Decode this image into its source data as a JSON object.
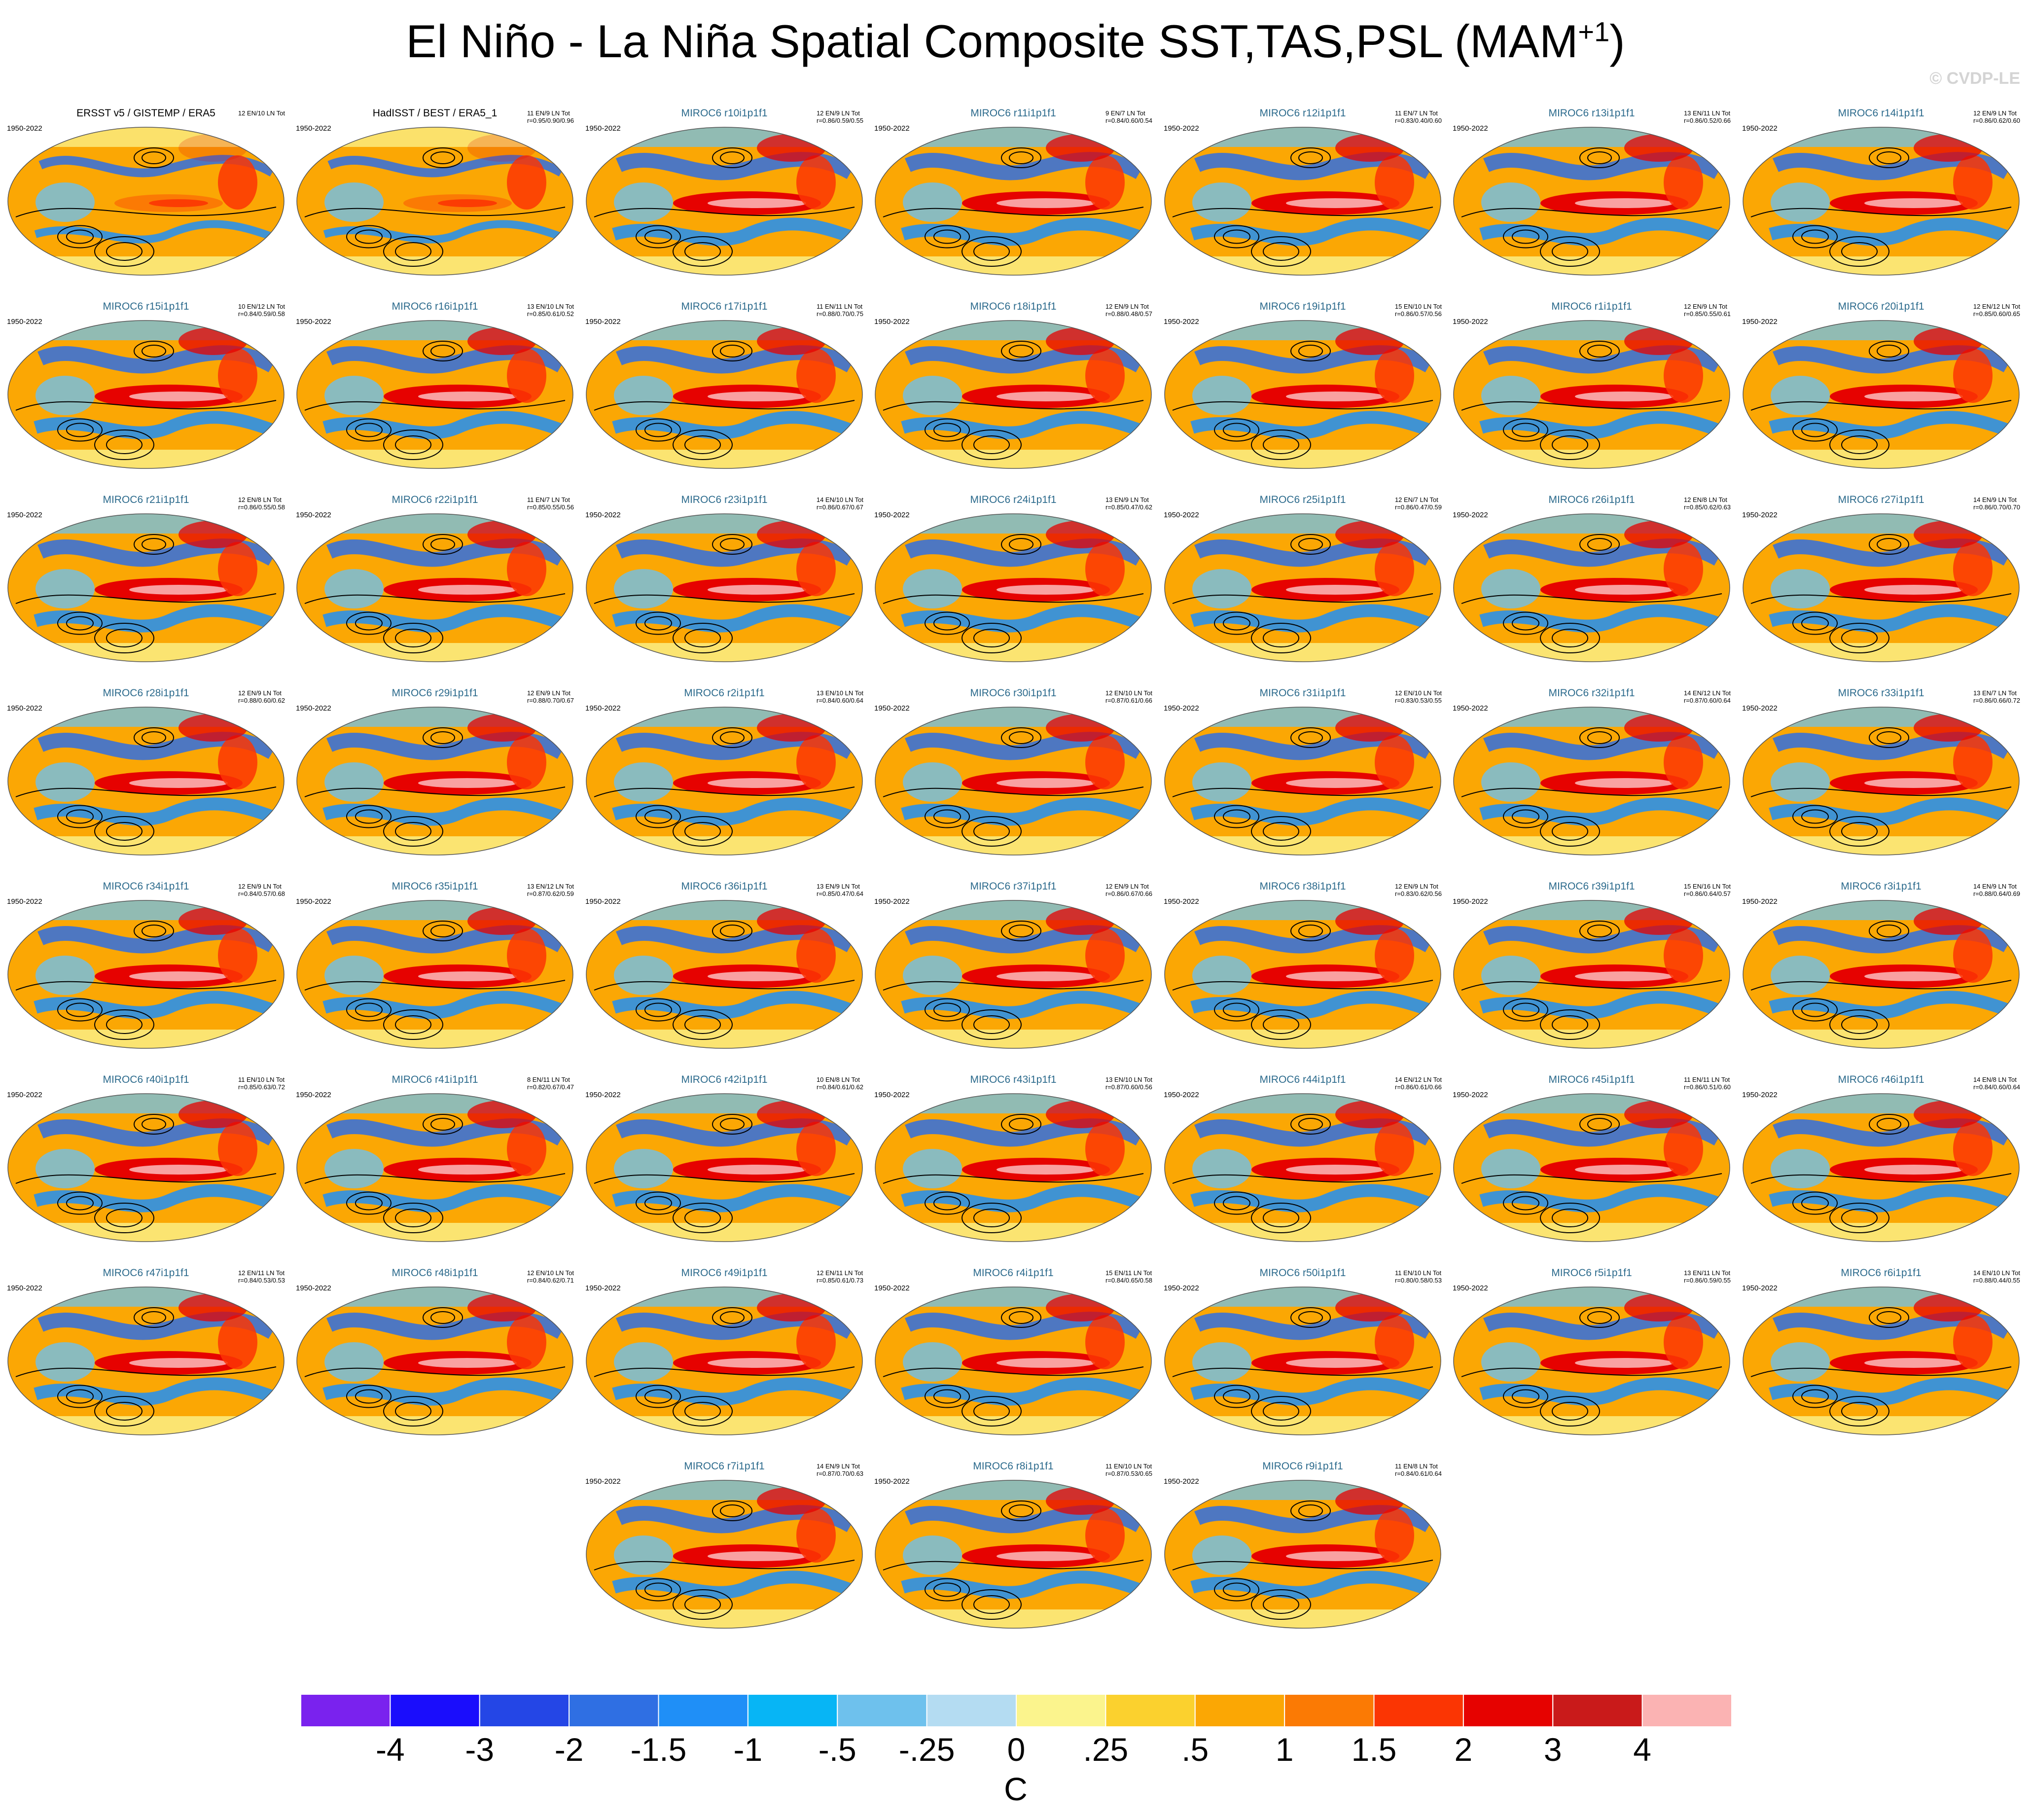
{
  "title": {
    "main": "El Niño - La Niña Spatial Composite SST,TAS,PSL (MAM",
    "superscript": "+1",
    "close": ")"
  },
  "watermark": "© CVDP-LE",
  "panels": [
    {
      "title": "ERSST v5 / GISTEMP / ERA5",
      "period": "1950-2022",
      "counts": "12 EN/10 LN Tot",
      "stats": "",
      "obs": true
    },
    {
      "title": "HadISST / BEST / ERA5_1",
      "period": "1950-2022",
      "counts": "11 EN/9 LN Tot",
      "stats": "r=0.95/0.90/0.96",
      "obs": true
    },
    {
      "title": "MIROC6 r10i1p1f1",
      "period": "1950-2022",
      "counts": "12 EN/9 LN Tot",
      "stats": "r=0.86/0.59/0.55"
    },
    {
      "title": "MIROC6 r11i1p1f1",
      "period": "1950-2022",
      "counts": "9 EN/7 LN Tot",
      "stats": "r=0.84/0.60/0.54"
    },
    {
      "title": "MIROC6 r12i1p1f1",
      "period": "1950-2022",
      "counts": "11 EN/7 LN Tot",
      "stats": "r=0.83/0.40/0.60"
    },
    {
      "title": "MIROC6 r13i1p1f1",
      "period": "1950-2022",
      "counts": "13 EN/11 LN Tot",
      "stats": "r=0.86/0.52/0.66"
    },
    {
      "title": "MIROC6 r14i1p1f1",
      "period": "1950-2022",
      "counts": "12 EN/9 LN Tot",
      "stats": "r=0.86/0.62/0.60"
    },
    {
      "title": "MIROC6 r15i1p1f1",
      "period": "1950-2022",
      "counts": "10 EN/12 LN Tot",
      "stats": "r=0.84/0.59/0.58"
    },
    {
      "title": "MIROC6 r16i1p1f1",
      "period": "1950-2022",
      "counts": "13 EN/10 LN Tot",
      "stats": "r=0.85/0.61/0.52"
    },
    {
      "title": "MIROC6 r17i1p1f1",
      "period": "1950-2022",
      "counts": "11 EN/11 LN Tot",
      "stats": "r=0.88/0.70/0.75"
    },
    {
      "title": "MIROC6 r18i1p1f1",
      "period": "1950-2022",
      "counts": "12 EN/9 LN Tot",
      "stats": "r=0.88/0.48/0.57"
    },
    {
      "title": "MIROC6 r19i1p1f1",
      "period": "1950-2022",
      "counts": "15 EN/10 LN Tot",
      "stats": "r=0.86/0.57/0.56"
    },
    {
      "title": "MIROC6 r1i1p1f1",
      "period": "1950-2022",
      "counts": "12 EN/9 LN Tot",
      "stats": "r=0.85/0.55/0.61"
    },
    {
      "title": "MIROC6 r20i1p1f1",
      "period": "1950-2022",
      "counts": "12 EN/12 LN Tot",
      "stats": "r=0.85/0.60/0.65"
    },
    {
      "title": "MIROC6 r21i1p1f1",
      "period": "1950-2022",
      "counts": "12 EN/8 LN Tot",
      "stats": "r=0.86/0.55/0.58"
    },
    {
      "title": "MIROC6 r22i1p1f1",
      "period": "1950-2022",
      "counts": "11 EN/7 LN Tot",
      "stats": "r=0.85/0.55/0.56"
    },
    {
      "title": "MIROC6 r23i1p1f1",
      "period": "1950-2022",
      "counts": "14 EN/10 LN Tot",
      "stats": "r=0.86/0.67/0.67"
    },
    {
      "title": "MIROC6 r24i1p1f1",
      "period": "1950-2022",
      "counts": "13 EN/9 LN Tot",
      "stats": "r=0.85/0.47/0.62"
    },
    {
      "title": "MIROC6 r25i1p1f1",
      "period": "1950-2022",
      "counts": "12 EN/7 LN Tot",
      "stats": "r=0.86/0.47/0.59"
    },
    {
      "title": "MIROC6 r26i1p1f1",
      "period": "1950-2022",
      "counts": "12 EN/8 LN Tot",
      "stats": "r=0.85/0.62/0.63"
    },
    {
      "title": "MIROC6 r27i1p1f1",
      "period": "1950-2022",
      "counts": "14 EN/9 LN Tot",
      "stats": "r=0.86/0.70/0.70"
    },
    {
      "title": "MIROC6 r28i1p1f1",
      "period": "1950-2022",
      "counts": "12 EN/9 LN Tot",
      "stats": "r=0.88/0.60/0.62"
    },
    {
      "title": "MIROC6 r29i1p1f1",
      "period": "1950-2022",
      "counts": "12 EN/9 LN Tot",
      "stats": "r=0.88/0.70/0.67"
    },
    {
      "title": "MIROC6 r2i1p1f1",
      "period": "1950-2022",
      "counts": "13 EN/10 LN Tot",
      "stats": "r=0.84/0.60/0.64"
    },
    {
      "title": "MIROC6 r30i1p1f1",
      "period": "1950-2022",
      "counts": "12 EN/10 LN Tot",
      "stats": "r=0.87/0.61/0.66"
    },
    {
      "title": "MIROC6 r31i1p1f1",
      "period": "1950-2022",
      "counts": "12 EN/10 LN Tot",
      "stats": "r=0.83/0.53/0.55"
    },
    {
      "title": "MIROC6 r32i1p1f1",
      "period": "1950-2022",
      "counts": "14 EN/12 LN Tot",
      "stats": "r=0.87/0.60/0.64"
    },
    {
      "title": "MIROC6 r33i1p1f1",
      "period": "1950-2022",
      "counts": "13 EN/7 LN Tot",
      "stats": "r=0.86/0.66/0.72"
    },
    {
      "title": "MIROC6 r34i1p1f1",
      "period": "1950-2022",
      "counts": "12 EN/9 LN Tot",
      "stats": "r=0.84/0.57/0.68"
    },
    {
      "title": "MIROC6 r35i1p1f1",
      "period": "1950-2022",
      "counts": "13 EN/12 LN Tot",
      "stats": "r=0.87/0.62/0.59"
    },
    {
      "title": "MIROC6 r36i1p1f1",
      "period": "1950-2022",
      "counts": "13 EN/9 LN Tot",
      "stats": "r=0.85/0.47/0.64"
    },
    {
      "title": "MIROC6 r37i1p1f1",
      "period": "1950-2022",
      "counts": "12 EN/9 LN Tot",
      "stats": "r=0.86/0.67/0.66"
    },
    {
      "title": "MIROC6 r38i1p1f1",
      "period": "1950-2022",
      "counts": "12 EN/9 LN Tot",
      "stats": "r=0.83/0.62/0.56"
    },
    {
      "title": "MIROC6 r39i1p1f1",
      "period": "1950-2022",
      "counts": "15 EN/16 LN Tot",
      "stats": "r=0.86/0.64/0.57"
    },
    {
      "title": "MIROC6 r3i1p1f1",
      "period": "1950-2022",
      "counts": "14 EN/9 LN Tot",
      "stats": "r=0.88/0.64/0.69"
    },
    {
      "title": "MIROC6 r40i1p1f1",
      "period": "1950-2022",
      "counts": "11 EN/10 LN Tot",
      "stats": "r=0.85/0.63/0.72"
    },
    {
      "title": "MIROC6 r41i1p1f1",
      "period": "1950-2022",
      "counts": "8 EN/11 LN Tot",
      "stats": "r=0.82/0.67/0.47"
    },
    {
      "title": "MIROC6 r42i1p1f1",
      "period": "1950-2022",
      "counts": "10 EN/8 LN Tot",
      "stats": "r=0.84/0.61/0.62"
    },
    {
      "title": "MIROC6 r43i1p1f1",
      "period": "1950-2022",
      "counts": "13 EN/10 LN Tot",
      "stats": "r=0.87/0.60/0.56"
    },
    {
      "title": "MIROC6 r44i1p1f1",
      "period": "1950-2022",
      "counts": "14 EN/12 LN Tot",
      "stats": "r=0.86/0.61/0.66"
    },
    {
      "title": "MIROC6 r45i1p1f1",
      "period": "1950-2022",
      "counts": "11 EN/11 LN Tot",
      "stats": "r=0.86/0.51/0.60"
    },
    {
      "title": "MIROC6 r46i1p1f1",
      "period": "1950-2022",
      "counts": "14 EN/8 LN Tot",
      "stats": "r=0.84/0.60/0.64"
    },
    {
      "title": "MIROC6 r47i1p1f1",
      "period": "1950-2022",
      "counts": "12 EN/11 LN Tot",
      "stats": "r=0.84/0.53/0.53"
    },
    {
      "title": "MIROC6 r48i1p1f1",
      "period": "1950-2022",
      "counts": "12 EN/10 LN Tot",
      "stats": "r=0.84/0.62/0.71"
    },
    {
      "title": "MIROC6 r49i1p1f1",
      "period": "1950-2022",
      "counts": "12 EN/11 LN Tot",
      "stats": "r=0.85/0.61/0.73"
    },
    {
      "title": "MIROC6 r4i1p1f1",
      "period": "1950-2022",
      "counts": "15 EN/11 LN Tot",
      "stats": "r=0.84/0.65/0.58"
    },
    {
      "title": "MIROC6 r50i1p1f1",
      "period": "1950-2022",
      "counts": "11 EN/10 LN Tot",
      "stats": "r=0.80/0.58/0.53"
    },
    {
      "title": "MIROC6 r5i1p1f1",
      "period": "1950-2022",
      "counts": "13 EN/11 LN Tot",
      "stats": "r=0.86/0.59/0.55"
    },
    {
      "title": "MIROC6 r6i1p1f1",
      "period": "1950-2022",
      "counts": "14 EN/10 LN Tot",
      "stats": "r=0.88/0.44/0.55"
    },
    {
      "title": "MIROC6 r7i1p1f1",
      "period": "1950-2022",
      "counts": "14 EN/9 LN Tot",
      "stats": "r=0.87/0.70/0.63"
    },
    {
      "title": "MIROC6 r8i1p1f1",
      "period": "1950-2022",
      "counts": "11 EN/10 LN Tot",
      "stats": "r=0.87/0.53/0.65"
    },
    {
      "title": "MIROC6 r9i1p1f1",
      "period": "1950-2022",
      "counts": "11 EN/8 LN Tot",
      "stats": "r=0.84/0.61/0.64"
    }
  ],
  "colorbar": {
    "unit": "C",
    "colors": [
      "#7a22ee",
      "#1a0dfc",
      "#2446e6",
      "#2f6fe3",
      "#1f8ff7",
      "#07b5f5",
      "#6ec1ed",
      "#b4dcf2",
      "#fbf48d",
      "#fbd12e",
      "#fba704",
      "#fb7a04",
      "#fb3503",
      "#e60200",
      "#c91a1a",
      "#fbb3b3"
    ],
    "ticks": [
      "-4",
      "-3",
      "-2",
      "-1.5",
      "-1",
      "-.5",
      "-.25",
      "0",
      ".25",
      ".5",
      "1",
      "1.5",
      "2",
      "3",
      "4"
    ]
  },
  "map_colors": {
    "land_warm": "#fba704",
    "ocean_warm": "#fb7a04",
    "enso_core": "#e60200",
    "cold": "#6ec1ed",
    "neutral": "#fbf48d",
    "contour": "#000000"
  }
}
